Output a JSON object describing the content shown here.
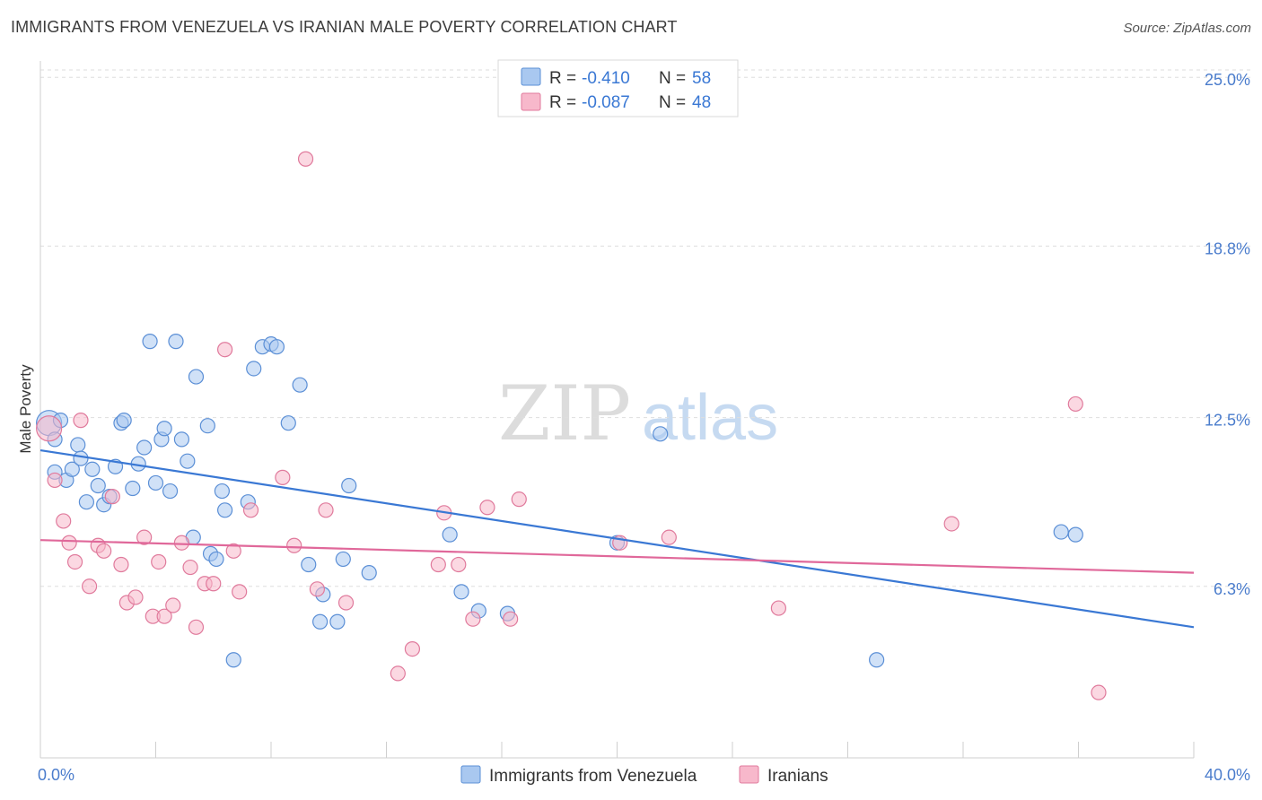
{
  "header": {
    "title": "IMMIGRANTS FROM VENEZUELA VS IRANIAN MALE POVERTY CORRELATION CHART",
    "source": "Source: ZipAtlas.com"
  },
  "watermark": {
    "zip": "ZIP",
    "atlas": "atlas"
  },
  "legend_box": {
    "rows": [
      {
        "r_label": "R =",
        "r_value": "-0.410",
        "n_label": "N =",
        "n_value": "58",
        "color": "#a9c8f0",
        "stroke": "#5b8fd6"
      },
      {
        "r_label": "R =",
        "r_value": "-0.087",
        "n_label": "N =",
        "n_value": "48",
        "color": "#f7b8cb",
        "stroke": "#e07a9c"
      }
    ]
  },
  "bottom_legend": [
    {
      "label": "Immigrants from Venezuela",
      "color": "#a9c8f0",
      "stroke": "#5b8fd6"
    },
    {
      "label": "Iranians",
      "color": "#f7b8cb",
      "stroke": "#e07a9c"
    }
  ],
  "chart_data": {
    "type": "scatter",
    "title": "IMMIGRANTS FROM VENEZUELA VS IRANIAN MALE POVERTY CORRELATION CHART",
    "xlabel": "",
    "ylabel": "Male Poverty",
    "xlim": [
      0,
      40
    ],
    "ylim": [
      0,
      25.6
    ],
    "x_tick_labels": [
      {
        "value": 0,
        "label": "0.0%"
      },
      {
        "value": 40,
        "label": "40.0%"
      }
    ],
    "y_tick_labels": [
      {
        "value": 6.3,
        "label": "6.3%"
      },
      {
        "value": 12.5,
        "label": "12.5%"
      },
      {
        "value": 18.8,
        "label": "18.8%"
      },
      {
        "value": 25.0,
        "label": "25.0%"
      }
    ],
    "grid": true,
    "series": [
      {
        "name": "Immigrants from Venezuela",
        "color": "#a9c8f0",
        "stroke": "#5b8fd6",
        "trend": {
          "x": [
            0,
            40
          ],
          "y": [
            11.3,
            4.8
          ],
          "color": "#3a78d4"
        },
        "points": [
          [
            0.3,
            12.3
          ],
          [
            0.5,
            10.5
          ],
          [
            0.5,
            11.7
          ],
          [
            0.7,
            12.4
          ],
          [
            0.9,
            10.2
          ],
          [
            1.1,
            10.6
          ],
          [
            1.3,
            11.5
          ],
          [
            1.4,
            11.0
          ],
          [
            1.6,
            9.4
          ],
          [
            1.8,
            10.6
          ],
          [
            2.0,
            10.0
          ],
          [
            2.2,
            9.3
          ],
          [
            2.4,
            9.6
          ],
          [
            2.6,
            10.7
          ],
          [
            2.8,
            12.3
          ],
          [
            2.9,
            12.4
          ],
          [
            3.2,
            9.9
          ],
          [
            3.4,
            10.8
          ],
          [
            3.6,
            11.4
          ],
          [
            3.8,
            15.3
          ],
          [
            4.0,
            10.1
          ],
          [
            4.2,
            11.7
          ],
          [
            4.3,
            12.1
          ],
          [
            4.5,
            9.8
          ],
          [
            4.7,
            15.3
          ],
          [
            4.9,
            11.7
          ],
          [
            5.1,
            10.9
          ],
          [
            5.3,
            8.1
          ],
          [
            5.4,
            14.0
          ],
          [
            5.8,
            12.2
          ],
          [
            5.9,
            7.5
          ],
          [
            6.1,
            7.3
          ],
          [
            6.3,
            9.8
          ],
          [
            6.4,
            9.1
          ],
          [
            6.7,
            3.6
          ],
          [
            7.2,
            9.4
          ],
          [
            7.4,
            14.3
          ],
          [
            7.7,
            15.1
          ],
          [
            8.0,
            15.2
          ],
          [
            8.2,
            15.1
          ],
          [
            8.6,
            12.3
          ],
          [
            9.0,
            13.7
          ],
          [
            9.3,
            7.1
          ],
          [
            9.7,
            5.0
          ],
          [
            9.8,
            6.0
          ],
          [
            10.3,
            5.0
          ],
          [
            10.5,
            7.3
          ],
          [
            10.7,
            10.0
          ],
          [
            11.4,
            6.8
          ],
          [
            14.2,
            8.2
          ],
          [
            14.6,
            6.1
          ],
          [
            15.2,
            5.4
          ],
          [
            16.2,
            5.3
          ],
          [
            20.0,
            7.9
          ],
          [
            21.5,
            11.9
          ],
          [
            29.0,
            3.6
          ],
          [
            35.4,
            8.3
          ],
          [
            35.9,
            8.2
          ]
        ]
      },
      {
        "name": "Iranians",
        "color": "#f7b8cb",
        "stroke": "#e07a9c",
        "trend": {
          "x": [
            0,
            40
          ],
          "y": [
            8.0,
            6.8
          ],
          "color": "#e0689a"
        },
        "points": [
          [
            0.3,
            12.1
          ],
          [
            0.5,
            10.2
          ],
          [
            0.8,
            8.7
          ],
          [
            1.0,
            7.9
          ],
          [
            1.2,
            7.2
          ],
          [
            1.4,
            12.4
          ],
          [
            1.7,
            6.3
          ],
          [
            2.0,
            7.8
          ],
          [
            2.2,
            7.6
          ],
          [
            2.5,
            9.6
          ],
          [
            2.8,
            7.1
          ],
          [
            3.0,
            5.7
          ],
          [
            3.3,
            5.9
          ],
          [
            3.6,
            8.1
          ],
          [
            3.9,
            5.2
          ],
          [
            4.1,
            7.2
          ],
          [
            4.3,
            5.2
          ],
          [
            4.6,
            5.6
          ],
          [
            4.9,
            7.9
          ],
          [
            5.2,
            7.0
          ],
          [
            5.4,
            4.8
          ],
          [
            5.7,
            6.4
          ],
          [
            6.0,
            6.4
          ],
          [
            6.4,
            15.0
          ],
          [
            6.7,
            7.6
          ],
          [
            6.9,
            6.1
          ],
          [
            7.3,
            9.1
          ],
          [
            8.4,
            10.3
          ],
          [
            8.8,
            7.8
          ],
          [
            9.2,
            22.0
          ],
          [
            9.6,
            6.2
          ],
          [
            9.9,
            9.1
          ],
          [
            10.6,
            5.7
          ],
          [
            12.4,
            3.1
          ],
          [
            12.9,
            4.0
          ],
          [
            13.8,
            7.1
          ],
          [
            14.0,
            9.0
          ],
          [
            14.5,
            7.1
          ],
          [
            15.0,
            5.1
          ],
          [
            15.5,
            9.2
          ],
          [
            16.3,
            5.1
          ],
          [
            16.6,
            9.5
          ],
          [
            20.1,
            7.9
          ],
          [
            21.8,
            8.1
          ],
          [
            25.6,
            5.5
          ],
          [
            31.6,
            8.6
          ],
          [
            35.9,
            13.0
          ],
          [
            36.7,
            2.4
          ]
        ]
      }
    ]
  }
}
